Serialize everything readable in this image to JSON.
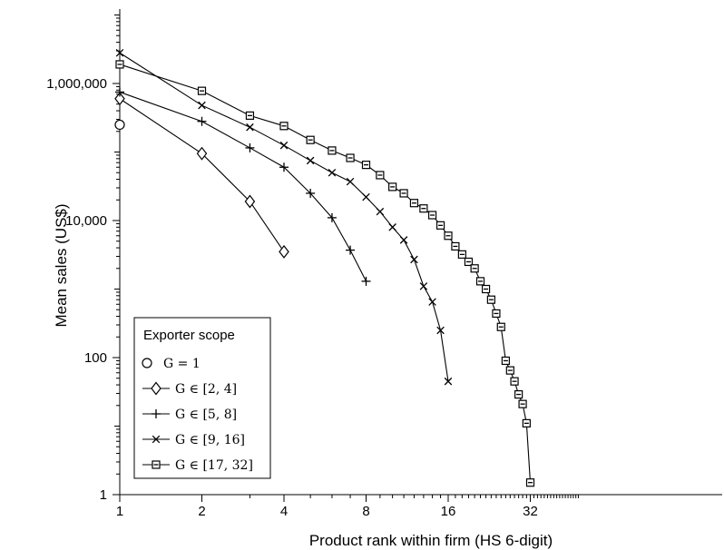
{
  "chart_data": {
    "type": "line",
    "xlabel": "Product rank within firm (HS 6-digit)",
    "ylabel": "Mean sales (US$)",
    "xscale": "log2",
    "yscale": "log10",
    "xlim": [
      1,
      48
    ],
    "ylim": [
      1,
      10000000
    ],
    "x_ticks": [
      1,
      2,
      4,
      8,
      16,
      32
    ],
    "x_tick_labels": [
      "1",
      "2",
      "4",
      "8",
      "16",
      "32"
    ],
    "y_ticks": [
      1,
      100,
      10000,
      1000000
    ],
    "y_tick_labels": [
      "1",
      "100",
      "10,000",
      "1,000,000"
    ],
    "grid": false,
    "legend": {
      "title": "Exporter scope",
      "position": "bottom-left"
    },
    "series": [
      {
        "name": "G = 1",
        "marker": "circle",
        "x": [
          1
        ],
        "y": [
          250000
        ]
      },
      {
        "name": "G ∈ [2, 4]",
        "marker": "diamond",
        "x": [
          1,
          2,
          3,
          4
        ],
        "y": [
          600000,
          95000,
          19000,
          3500
        ]
      },
      {
        "name": "G ∈ [5, 8]",
        "marker": "plus",
        "x": [
          1,
          2,
          3,
          4,
          5,
          6,
          7,
          8
        ],
        "y": [
          750000,
          280000,
          115000,
          60000,
          25000,
          11000,
          3700,
          1300
        ]
      },
      {
        "name": "G ∈ [9, 16]",
        "marker": "x",
        "x": [
          1,
          2,
          3,
          4,
          5,
          6,
          7,
          8,
          9,
          10,
          11,
          12,
          13,
          14,
          15,
          16
        ],
        "y": [
          2800000,
          480000,
          230000,
          125000,
          75000,
          50000,
          37000,
          22000,
          13500,
          8000,
          5200,
          2700,
          1100,
          650,
          250,
          45
        ]
      },
      {
        "name": "G ∈ [17, 32]",
        "marker": "square",
        "x": [
          1,
          2,
          3,
          4,
          5,
          6,
          7,
          8,
          9,
          10,
          11,
          12,
          13,
          14,
          15,
          16,
          17,
          18,
          19,
          20,
          21,
          22,
          23,
          24,
          25,
          26,
          27,
          28,
          29,
          30,
          31,
          32
        ],
        "y": [
          1900000,
          780000,
          340000,
          240000,
          150000,
          105000,
          82000,
          65000,
          46000,
          31000,
          25000,
          18000,
          15000,
          12000,
          8500,
          6000,
          4200,
          3200,
          2500,
          2000,
          1300,
          1000,
          700,
          440,
          280,
          90,
          65,
          45,
          29,
          21,
          11,
          1.5
        ]
      }
    ]
  }
}
